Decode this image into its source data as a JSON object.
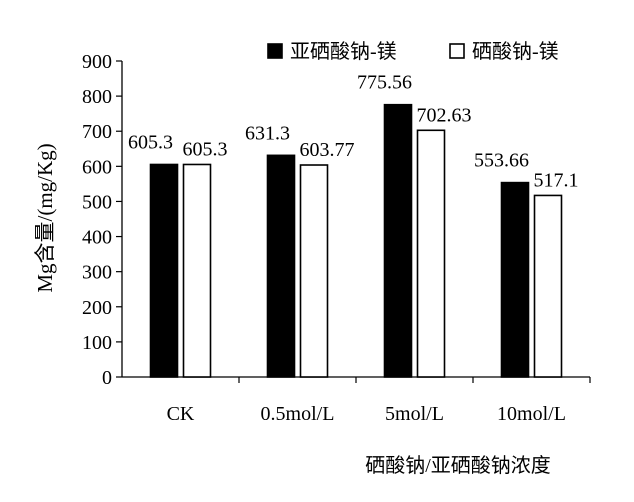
{
  "chart_data": {
    "type": "bar",
    "categories": [
      "CK",
      "0.5mol/L",
      "5mol/L",
      "10mol/L"
    ],
    "series": [
      {
        "name": "亚硒酸钠-镁",
        "values": [
          605.3,
          631.3,
          775.56,
          553.66
        ],
        "labels": [
          "605.3",
          "631.3",
          "775.56",
          "553.66"
        ],
        "color": "#000000"
      },
      {
        "name": "硒酸钠-镁",
        "values": [
          605.3,
          603.77,
          702.63,
          517.1
        ],
        "labels": [
          "605.3",
          "603.77",
          "702.63",
          "517.1"
        ],
        "color": "#ffffff"
      }
    ],
    "xlabel": "硒酸钠/亚硒酸钠浓度",
    "ylabel": "Mg含量/(mg/Kg)",
    "ylim": [
      0,
      900
    ],
    "yticks": [
      0,
      100,
      200,
      300,
      400,
      500,
      600,
      700,
      800,
      900
    ],
    "grid": false,
    "legend": "top-right"
  }
}
